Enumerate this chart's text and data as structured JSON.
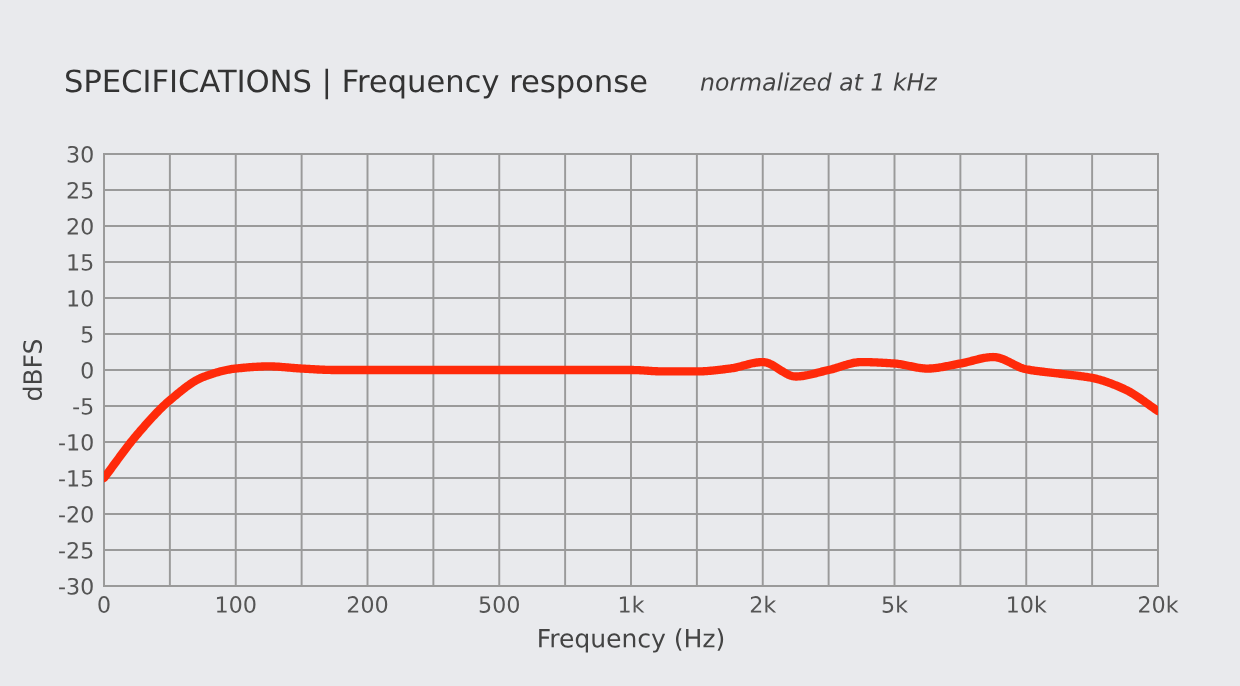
{
  "chart_data": {
    "type": "line",
    "title": "SPECIFICATIONS | Frequency response",
    "subtitle": "normalized at 1 kHz",
    "xlabel": "Frequency (Hz)",
    "ylabel": "dBFS",
    "categories": [
      "0",
      null,
      null,
      null,
      "100",
      null,
      null,
      null,
      "200",
      null,
      null,
      null,
      "500",
      null,
      null,
      null,
      "1k",
      null,
      null,
      null,
      "2k",
      null,
      null,
      null,
      "5k",
      null,
      null,
      null,
      "10k",
      null,
      null,
      null,
      "20k"
    ],
    "series": [
      {
        "color": "#ff2a0a",
        "values": [
          -15,
          -9,
          -4.2,
          -1,
          0.2,
          0.5,
          0.2,
          0,
          0,
          0,
          0,
          0,
          0,
          0,
          0,
          0,
          0,
          -0.2,
          -0.2,
          0.2,
          1.1,
          -0.9,
          0,
          1.1,
          0.9,
          0.2,
          0.9,
          1.8,
          0.1,
          -0.5,
          -1.1,
          -2.7,
          -5.7
        ]
      }
    ],
    "ylim": [
      -30,
      30
    ],
    "yticks": [
      -30,
      -25,
      -20,
      -15,
      -10,
      -5,
      0,
      5,
      10,
      15,
      20,
      25,
      30
    ],
    "grid": true,
    "marker": "none",
    "line_style": "solid",
    "legend": false
  }
}
